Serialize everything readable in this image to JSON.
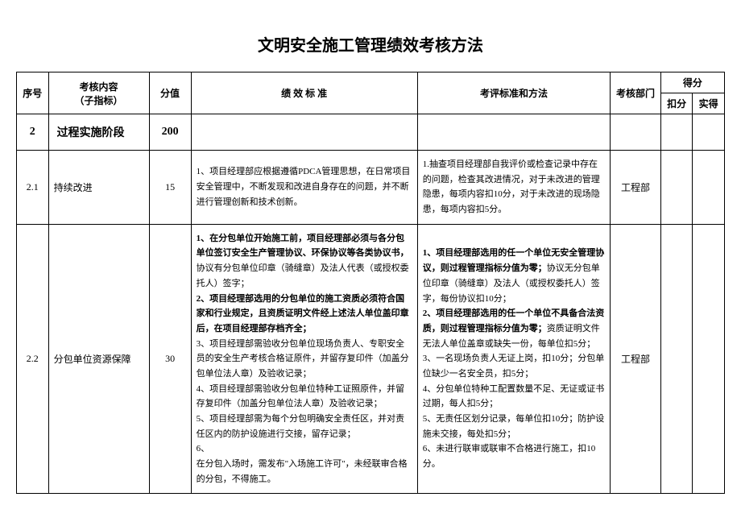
{
  "title": "文明安全施工管理绩效考核方法",
  "headers": {
    "seq": "序号",
    "content": "考核内容\n（子指标）",
    "score": "分值",
    "standard": "绩  效  标  准",
    "method": "考评标准和方法",
    "dept": "考核部门",
    "scoreGroup": "得分",
    "deduct": "扣分",
    "actual": "实得"
  },
  "section": {
    "seq": "2",
    "name": "过程实施阶段",
    "score": "200"
  },
  "rows": [
    {
      "seq": "2.1",
      "content": "持续改进",
      "score": "15",
      "standard": "1、项目经理部应根据遵循PDCA管理思想，在日常项目安全管理中，不断发现和改进自身存在的问题，并不断进行管理创新和技术创新。",
      "method": "1.抽查项目经理部自我评价或检查记录中存在的问题，检查其改进情况，对于未改进的管理隐患，每项内容扣10分，对于未改进的现场隐患，每项内容扣5分。",
      "dept": "工程部"
    },
    {
      "seq": "2.2",
      "content": "分包单位资源保障",
      "score": "30",
      "standard_parts": [
        {
          "bold": true,
          "text": "1、在分包单位开始施工前，项目经理部必须与各分包单位签订安全生产管理协议、环保协议等各类协议书，"
        },
        {
          "bold": false,
          "text": "协议有分包单位印章（骑缝章）及法人代表（或授权委托人）签字；"
        },
        {
          "bold": true,
          "text": "2、项目经理部选用的分包单位的施工资质必须符合国家和行业规定，且资质证明文件经上述法人单位盖印章后，在项目经理部存档齐全；"
        },
        {
          "bold": false,
          "text": "3、项目经理部需验收分包单位现场负责人、专职安全员的安全生产考核合格证原件，并留存复印件（加盖分包单位法人章）及验收记录；"
        },
        {
          "bold": false,
          "text": "4、项目经理部需验收分包单位特种工证照原件，并留存复印件（加盖分包单位法人章）及验收记录；"
        },
        {
          "bold": false,
          "text": "5、项目经理部需为每个分包明确安全责任区，并对责任区内的防护设施进行交接，留存记录；"
        },
        {
          "bold": false,
          "text": "6、"
        },
        {
          "bold": false,
          "text": "在分包入场时，需发布\"入场施工许可\"，未经联审合格的分包，不得施工。"
        }
      ],
      "method_parts": [
        {
          "bold": true,
          "text": "1、项目经理部选用的任一个单位无安全管理协议，则过程管理指标分值为零；"
        },
        {
          "bold": false,
          "text": "协议无分包单位印章（骑缝章）及法人（或授权委托人）签字，每份协议扣10分；"
        },
        {
          "bold": true,
          "text": "2、项目经理部选用的任一个单位不具备合法资质，则过程管理指标分值为零；"
        },
        {
          "bold": false,
          "text": "资质证明文件无法人单位盖章或缺失一份，每单位扣5分；"
        },
        {
          "bold": false,
          "text": "3、一名现场负责人无证上岗，扣10分；分包单位缺少一名安全员，扣5分；"
        },
        {
          "bold": false,
          "text": "4、分包单位特种工配置数量不足、无证或证书过期，每人扣5分；"
        },
        {
          "bold": false,
          "text": "5、无责任区划分记录，每单位扣10分；防护设施未交接，每处扣5分；"
        },
        {
          "bold": false,
          "text": "6、未进行联审或联审不合格进行施工，扣10分。"
        }
      ],
      "dept": "工程部"
    }
  ]
}
